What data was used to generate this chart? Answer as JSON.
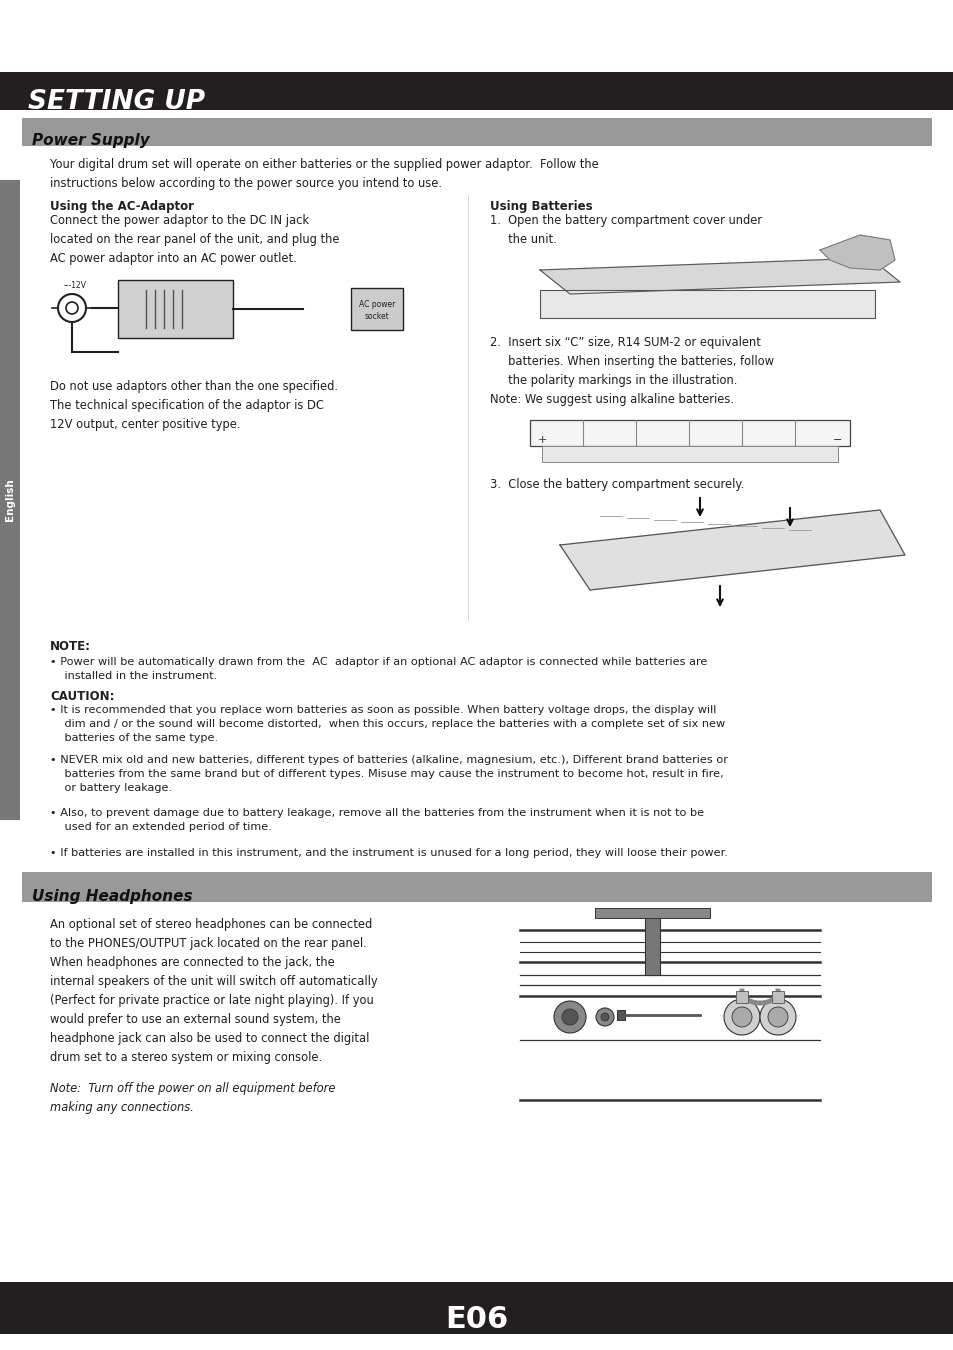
{
  "page_bg": "#ffffff",
  "dark_bar_color": "#231f20",
  "section_bar_color": "#999999",
  "sidebar_color": "#777777",
  "title_text": "SETTING UP",
  "title_color": "#ffffff",
  "section1_title": "Power Supply",
  "section2_title": "Using Headphones",
  "footer_text": "E06",
  "sidebar_text": "English",
  "body_text_color": "#231f20",
  "main_body": "Your digital drum set will operate on either batteries or the supplied power adaptor.  Follow the\ninstructions below according to the power source you intend to use.",
  "ac_heading": "Using the AC-Adaptor",
  "ac_body": "Connect the power adaptor to the DC IN jack\nlocated on the rear panel of the unit, and plug the\nAC power adaptor into an AC power outlet.",
  "ac_note": "Do not use adaptors other than the one specified.\nThe technical specification of the adaptor is DC\n12V output, center positive type.",
  "battery_heading": "Using Batteries",
  "battery_body1": "1.  Open the battery compartment cover under\n     the unit.",
  "battery_body2": "2.  Insert six “C” size, R14 SUM-2 or equivalent\n     batteries. When inserting the batteries, follow\n     the polarity markings in the illustration.\nNote: We suggest using alkaline batteries.",
  "battery_body3": "3.  Close the battery compartment securely.",
  "note_heading": "NOTE:",
  "note_bullet1": "Power will be automatically drawn from the  AC  adaptor if an optional AC adaptor is connected while batteries are\n    installed in the instrument.",
  "caution_heading": "CAUTION:",
  "caution_bullet1": "It is recommended that you replace worn batteries as soon as possible. When battery voltage drops, the display will\n    dim and / or the sound will become distorted,  when this occurs, replace the batteries with a complete set of six new\n    batteries of the same type.",
  "caution_bullet2": "NEVER mix old and new batteries, different types of batteries (alkaline, magnesium, etc.), Different brand batteries or\n    batteries from the same brand but of different types. Misuse may cause the instrument to become hot, result in fire,\n    or battery leakage.",
  "caution_bullet3": "Also, to prevent damage due to battery leakage, remove all the batteries from the instrument when it is not to be\n    used for an extended period of time.",
  "caution_bullet4": "If batteries are installed in this instrument, and the instrument is unused for a long period, they will loose their power.",
  "headphones_body": "An optional set of stereo headphones can be connected\nto the PHONES/OUTPUT jack located on the rear panel.\nWhen headphones are connected to the jack, the\ninternal speakers of the unit will switch off automatically\n(Perfect for private practice or late night playing). If you\nwould prefer to use an external sound system, the\nheadphone jack can also be used to connect the digital\ndrum set to a stereo system or mixing console.",
  "headphones_note": "Note:  Turn off the power on all equipment before\nmaking any connections."
}
